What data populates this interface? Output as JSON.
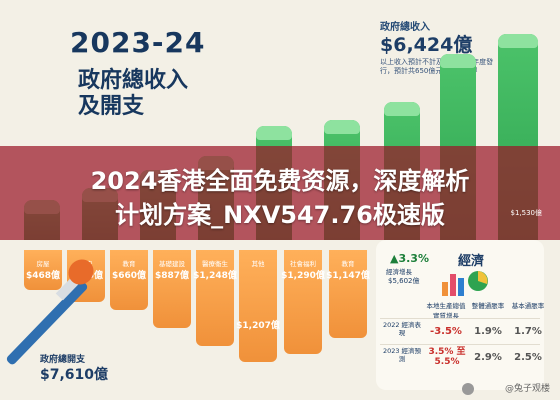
{
  "heading": {
    "year": "2023-24",
    "line1": "政府總收入",
    "line2": "及開支"
  },
  "revenue": {
    "label": "政府總收入",
    "amount": "$6,424億",
    "note": "以上收入預計不計及2023/24年度發行，預計共650億元的債務所得"
  },
  "banner": {
    "line1": "2024香港全面免费资源，深度解析",
    "line2": "计划方案_NXV547.76极速版"
  },
  "expenditure": {
    "label": "政府總開支",
    "amount": "$7,610億",
    "bars": [
      {
        "category": "房屋",
        "value": "$468億"
      },
      {
        "category": "保安",
        "value": "$705億"
      },
      {
        "category": "教育",
        "value": "$660億"
      },
      {
        "category": "基礎建設",
        "value": "$887億"
      },
      {
        "category": "醫療衞生",
        "value": "$1,248億"
      },
      {
        "category": "其他",
        "value": "$1,207億"
      },
      {
        "category": "社會福利",
        "value": "$1,290億"
      },
      {
        "category": "教育",
        "value": "$1,147億"
      }
    ]
  },
  "green_right_label": "$1,530億",
  "economy": {
    "title": "經濟",
    "gdp_pct": "3.3%",
    "gdp_label": "經濟增長",
    "gdp_amount": "$5,602億",
    "columns": [
      "本地生產總值實質增長",
      "整體通脹率",
      "基本通脹率"
    ],
    "rows": [
      {
        "label": "2022 經濟表現",
        "values": [
          "-3.5%",
          "1.9%",
          "1.7%"
        ]
      },
      {
        "label": "2023 經濟預測",
        "values": [
          "3.5% 至5.5%",
          "2.9%",
          "2.5%"
        ]
      }
    ]
  },
  "watermark": "@兔子观楼",
  "colors": {
    "navy": "#1d3d66",
    "green": "#2ea350",
    "orange": "#f0913a",
    "banner": "#9a1828"
  }
}
